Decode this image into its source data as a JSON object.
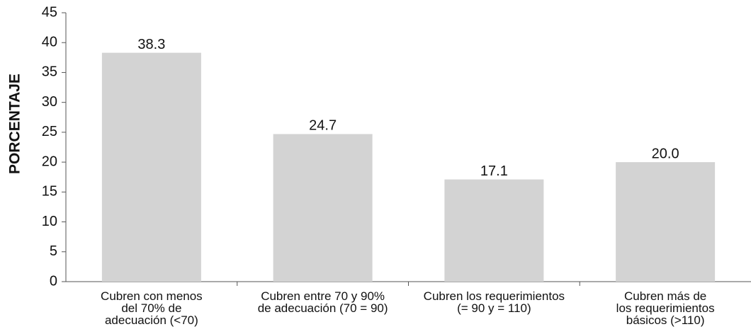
{
  "chart_data": {
    "type": "bar",
    "y_label": "PORCENTAJE",
    "categories": [
      [
        "Cubren con menos",
        "del 70% de",
        "adecuación (<70)"
      ],
      [
        "Cubren entre 70 y 90%",
        "de adecuación (70 = 90)"
      ],
      [
        "Cubren los requerimientos",
        "(= 90 y = 110)"
      ],
      [
        "Cubren más de",
        "los requerimientos",
        "básicos (>110)"
      ]
    ],
    "values": [
      38.3,
      24.7,
      17.1,
      20.0
    ],
    "value_labels": [
      "38.3",
      "24.7",
      "17.1",
      "20.0"
    ],
    "color": "#d3d3d3",
    "ylim": [
      0,
      45
    ],
    "yticks": [
      0,
      5,
      10,
      15,
      20,
      25,
      30,
      35,
      40,
      45
    ],
    "grid": false
  }
}
